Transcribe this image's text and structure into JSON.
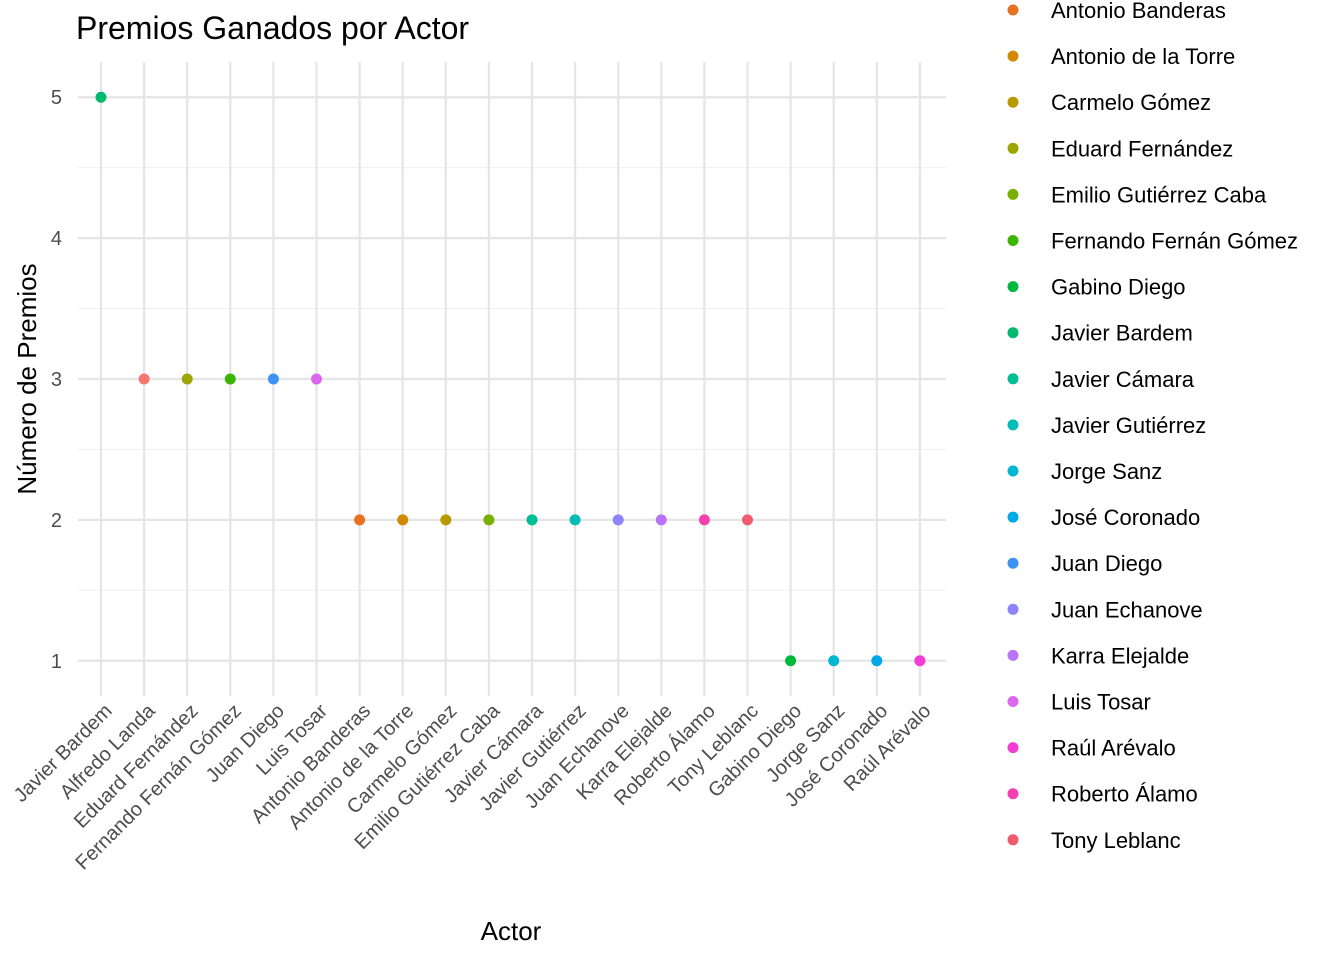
{
  "chart_data": {
    "type": "scatter",
    "title": "Premios Ganados por Actor",
    "xlabel": "Actor",
    "ylabel": "Número de Premios",
    "ylim": [
      0.75,
      5.25
    ],
    "yticks": [
      1,
      2,
      3,
      4,
      5
    ],
    "grid": true,
    "legend_position": "right",
    "categories": [
      "Javier Bardem",
      "Alfredo Landa",
      "Eduard Fernández",
      "Fernando Fernán Gómez",
      "Juan Diego",
      "Luis Tosar",
      "Antonio Banderas",
      "Antonio de la Torre",
      "Carmelo Gómez",
      "Emilio Gutiérrez Caba",
      "Javier Cámara",
      "Javier Gutiérrez",
      "Juan Echanove",
      "Karra Elejalde",
      "Roberto Álamo",
      "Tony Leblanc",
      "Gabino Diego",
      "Jorge Sanz",
      "José Coronado",
      "Raúl Arévalo"
    ],
    "values": [
      5,
      3,
      3,
      3,
      3,
      3,
      2,
      2,
      2,
      2,
      2,
      2,
      2,
      2,
      2,
      2,
      1,
      1,
      1,
      1
    ],
    "legend": [
      {
        "name": "Antonio Banderas",
        "color": "#E6711E"
      },
      {
        "name": "Antonio de la Torre",
        "color": "#D18A00"
      },
      {
        "name": "Carmelo Gómez",
        "color": "#BA9900"
      },
      {
        "name": "Eduard Fernández",
        "color": "#9FA500"
      },
      {
        "name": "Emilio Gutiérrez Caba",
        "color": "#78AF00"
      },
      {
        "name": "Fernando Fernán Gómez",
        "color": "#3CB500"
      },
      {
        "name": "Gabino Diego",
        "color": "#00B93A"
      },
      {
        "name": "Javier Bardem",
        "color": "#00BB6F"
      },
      {
        "name": "Javier Cámara",
        "color": "#00BE95"
      },
      {
        "name": "Javier Gutiérrez",
        "color": "#00BDB5"
      },
      {
        "name": "Jorge Sanz",
        "color": "#00B7D2"
      },
      {
        "name": "José Coronado",
        "color": "#00A8E8"
      },
      {
        "name": "Juan Diego",
        "color": "#3E92F5"
      },
      {
        "name": "Juan Echanove",
        "color": "#8D83FF"
      },
      {
        "name": "Karra Elejalde",
        "color": "#B972FA"
      },
      {
        "name": "Luis Tosar",
        "color": "#DC67EF"
      },
      {
        "name": "Raúl Arévalo",
        "color": "#F43CD4"
      },
      {
        "name": "Roberto Álamo",
        "color": "#F740AF"
      },
      {
        "name": "Tony Leblanc",
        "color": "#F05C6E"
      }
    ],
    "point_colors": {
      "Alfredo Landa": "#F8766D"
    }
  }
}
